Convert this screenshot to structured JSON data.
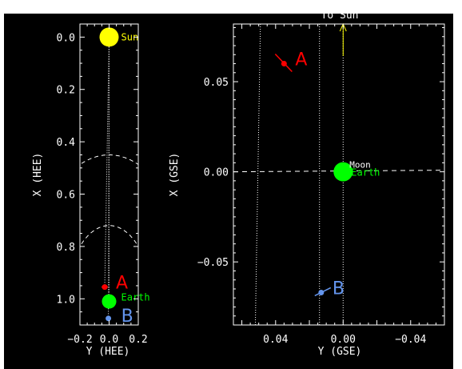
{
  "colors": {
    "background": "#000000",
    "foreground": "#ffffff",
    "sun": "#ffff00",
    "earth": "#00ff00",
    "stereo_a": "#ff0000",
    "stereo_b": "#6495ed"
  },
  "chart_data": [
    {
      "type": "scatter",
      "name": "hee-panel",
      "xlabel": "Y (HEE)",
      "ylabel": "X (HEE)",
      "xlim": [
        -0.2,
        0.2
      ],
      "ylim": [
        -0.05,
        1.1
      ],
      "x_reversed": false,
      "y_reversed": true,
      "x_ticks": [
        {
          "v": -0.2,
          "label": "−0.2"
        },
        {
          "v": 0.0,
          "label": "0.0"
        },
        {
          "v": 0.2,
          "label": "0.2"
        }
      ],
      "y_ticks": [
        {
          "v": 0.0,
          "label": "0.0"
        },
        {
          "v": 0.2,
          "label": "0.2"
        },
        {
          "v": 0.4,
          "label": "0.4"
        },
        {
          "v": 0.6,
          "label": "0.6"
        },
        {
          "v": 0.8,
          "label": "0.8"
        },
        {
          "v": 1.0,
          "label": "1.0"
        }
      ],
      "arc_radii": [
        0.56,
        0.29
      ],
      "points": [
        {
          "id": "sun",
          "label": "Sun",
          "x": 0.0,
          "y": 0.0,
          "color": "#ffff00"
        },
        {
          "id": "earth",
          "label": "Earth",
          "x": 0.0,
          "y": 1.01,
          "color": "#00ff00"
        },
        {
          "id": "a",
          "label": "A",
          "x": -0.03,
          "y": 0.955,
          "color": "#ff0000"
        },
        {
          "id": "b",
          "label": "B",
          "x": -0.005,
          "y": 1.075,
          "color": "#6495ed"
        }
      ]
    },
    {
      "type": "scatter",
      "name": "gse-panel",
      "title": "To Sun",
      "xlabel": "Y (GSE)",
      "ylabel": "X (GSE)",
      "xlim": [
        0.065,
        -0.06
      ],
      "ylim": [
        -0.085,
        0.082
      ],
      "x_ticks": [
        {
          "v": 0.04,
          "label": "0.04"
        },
        {
          "v": 0.0,
          "label": "0.00"
        },
        {
          "v": -0.04,
          "label": "−0.04"
        }
      ],
      "y_ticks": [
        {
          "v": 0.05,
          "label": "0.05"
        },
        {
          "v": 0.0,
          "label": "0.00"
        },
        {
          "v": -0.05,
          "label": "−0.05"
        }
      ],
      "points": [
        {
          "id": "earth",
          "label": "Earth",
          "x": 0.0,
          "y": 0.0,
          "color": "#00ff00"
        },
        {
          "id": "moon",
          "label": "Moon",
          "x": 0.0,
          "y": 0.0,
          "color": "#ffffff"
        },
        {
          "id": "a",
          "label": "A",
          "x": 0.035,
          "y": 0.06,
          "color": "#ff0000"
        },
        {
          "id": "b",
          "label": "B",
          "x": 0.013,
          "y": -0.067,
          "color": "#6495ed"
        }
      ]
    }
  ]
}
